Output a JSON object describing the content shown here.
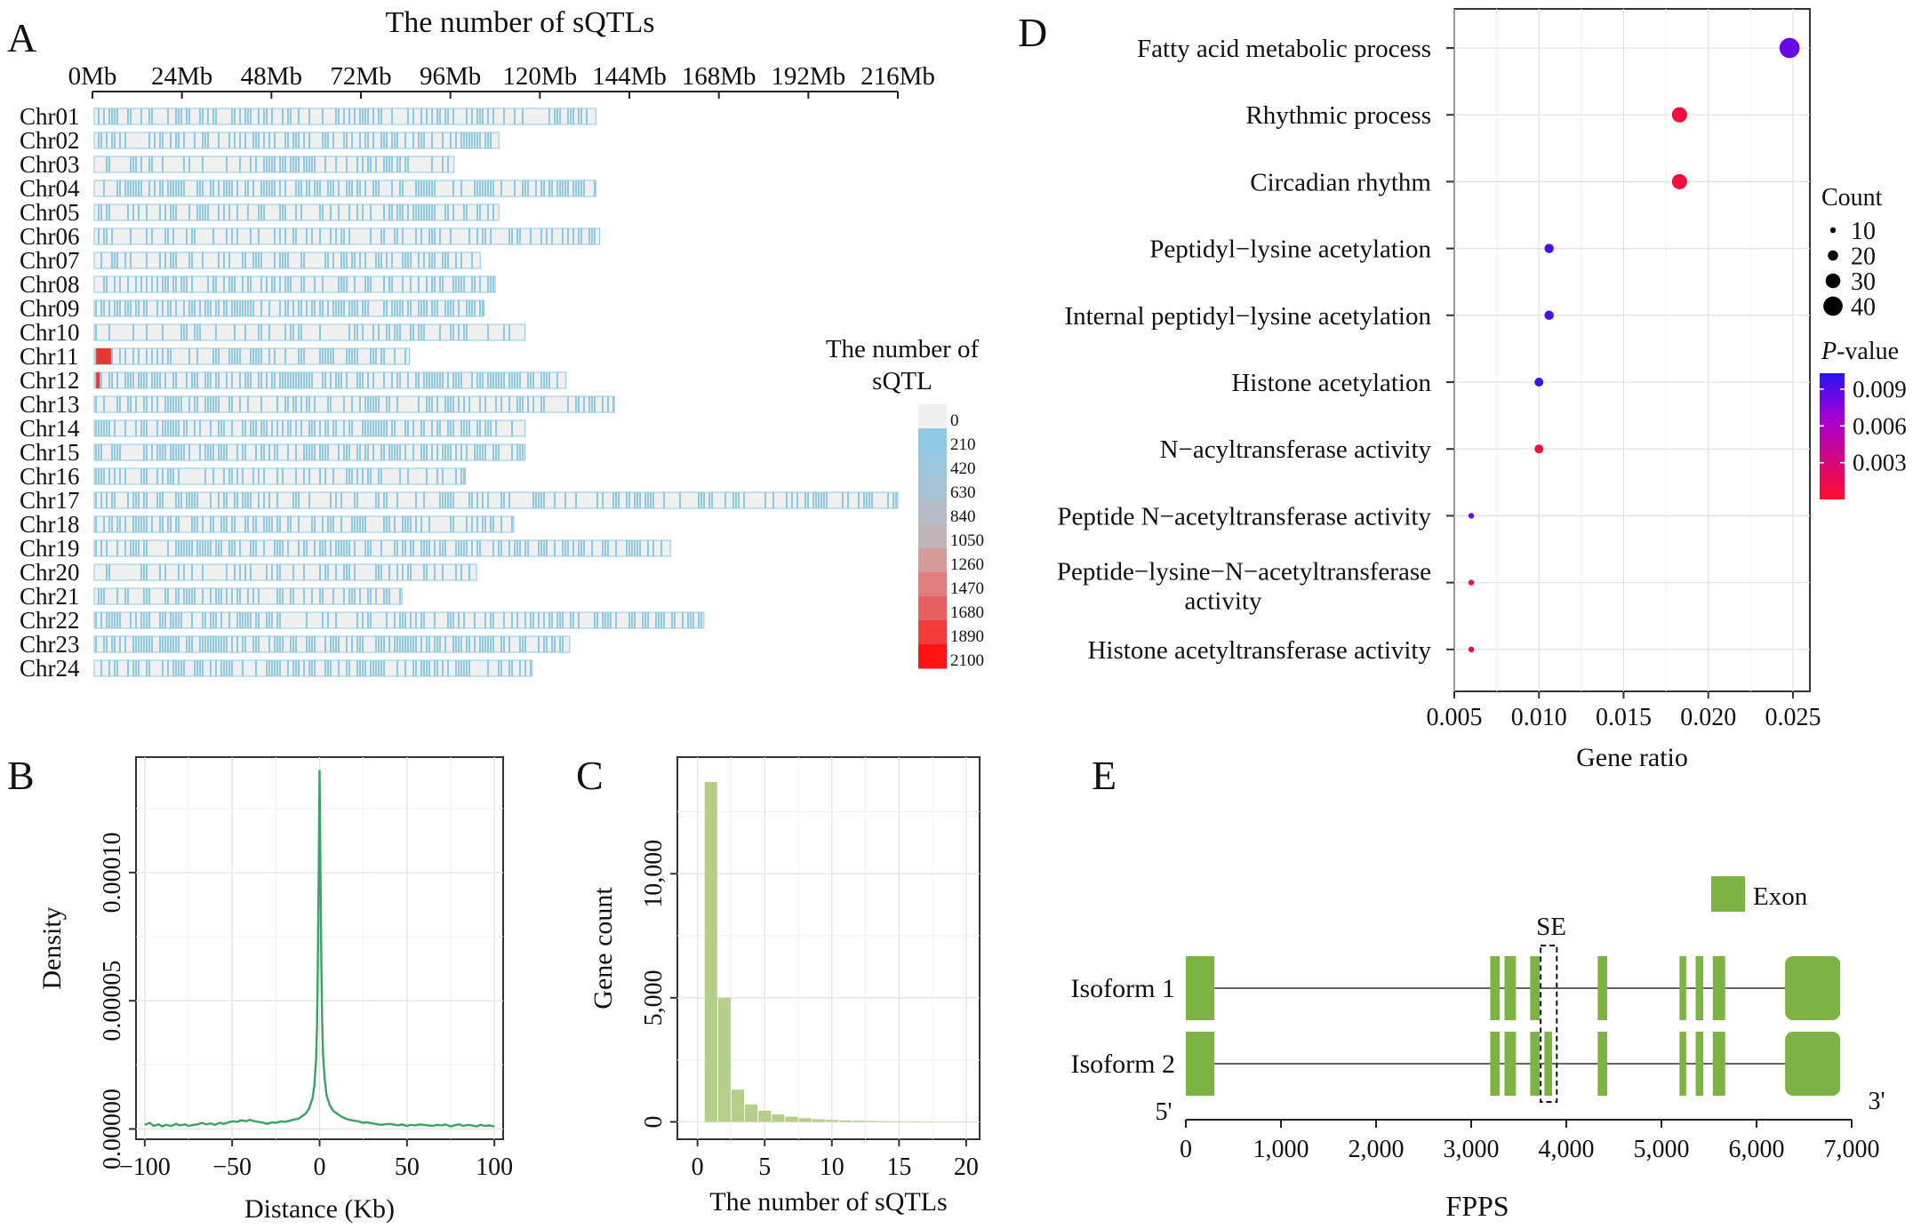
{
  "panels": {
    "A": {
      "letter": "A",
      "title": "The number of sQTLs",
      "axis_ticks": [
        "0Mb",
        "24Mb",
        "48Mb",
        "72Mb",
        "96Mb",
        "120Mb",
        "144Mb",
        "168Mb",
        "192Mb",
        "216Mb"
      ],
      "legend_title_line1": "The number of",
      "legend_title_line2": "sQTL",
      "legend_levels": [
        "0",
        "210",
        "420",
        "630",
        "840",
        "1050",
        "1260",
        "1470",
        "1680",
        "1890",
        "2100"
      ],
      "legend_colors": [
        "#f0f0f0",
        "#8ecae6",
        "#99c8de",
        "#a6c2d3",
        "#b4bcc6",
        "#c0b5b8",
        "#d59a9a",
        "#e07e7e",
        "#e85f5f",
        "#f23c3c",
        "#ff1212"
      ],
      "bar_fill": "#f0f0f0",
      "stripe_color": "#8ecae6",
      "hotspot_color": "#e53935"
    },
    "B": {
      "letter": "B"
    },
    "C": {
      "letter": "C"
    },
    "D": {
      "letter": "D",
      "size_legend_title": "Count",
      "size_legend_values": [
        "10",
        "20",
        "30",
        "40"
      ],
      "color_legend_title_italic": "P",
      "color_legend_title_rest": "-value",
      "color_legend_ticks": [
        "0.009",
        "0.006",
        "0.003"
      ]
    },
    "E": {
      "letter": "E",
      "gene_name": "FPPS",
      "legend_label": "Exon",
      "exon_color": "#7cb342",
      "se_label": "SE",
      "five_prime": "5'",
      "three_prime": "3'",
      "isoforms": [
        "Isoform 1",
        "Isoform 2"
      ],
      "axis_ticks": [
        "0",
        "1,000",
        "2,000",
        "3,000",
        "4,000",
        "5,000",
        "6,000",
        "7,000"
      ],
      "axis_range": [
        0,
        7000
      ],
      "exons": {
        "isoform1": [
          [
            0,
            300
          ],
          [
            3200,
            3300
          ],
          [
            3350,
            3470
          ],
          [
            3620,
            3720
          ],
          [
            4330,
            4430
          ],
          [
            5190,
            5260
          ],
          [
            5360,
            5440
          ],
          [
            5540,
            5670
          ],
          [
            6300,
            6880
          ]
        ],
        "isoform2": [
          [
            0,
            300
          ],
          [
            3200,
            3300
          ],
          [
            3350,
            3470
          ],
          [
            3620,
            3720
          ],
          [
            3770,
            3850
          ],
          [
            4330,
            4430
          ],
          [
            5190,
            5260
          ],
          [
            5360,
            5440
          ],
          [
            5540,
            5670
          ],
          [
            6300,
            6880
          ]
        ]
      },
      "se_range": [
        3730,
        3900
      ]
    }
  },
  "chart_data": [
    {
      "panel": "A",
      "type": "heatmap",
      "title": "The number of sQTLs",
      "xlabel": "",
      "x_unit": "Mb",
      "xlim": [
        0,
        216
      ],
      "categories": [
        "Chr01",
        "Chr02",
        "Chr03",
        "Chr04",
        "Chr05",
        "Chr06",
        "Chr07",
        "Chr08",
        "Chr09",
        "Chr10",
        "Chr11",
        "Chr12",
        "Chr13",
        "Chr14",
        "Chr15",
        "Chr16",
        "Chr17",
        "Chr18",
        "Chr19",
        "Chr20",
        "Chr21",
        "Chr22",
        "Chr23",
        "Chr24"
      ],
      "lengths_mb": [
        135,
        109,
        97,
        135,
        109,
        136,
        104,
        108,
        105,
        116,
        85,
        127,
        140,
        116,
        116,
        100,
        216,
        113,
        155,
        103,
        83,
        164,
        128,
        118
      ],
      "densities": [
        0.45,
        0.5,
        0.4,
        0.6,
        0.45,
        0.3,
        0.45,
        0.5,
        0.55,
        0.3,
        0.4,
        0.65,
        0.5,
        0.6,
        0.6,
        0.3,
        0.45,
        0.5,
        0.55,
        0.35,
        0.45,
        0.55,
        0.6,
        0.55
      ],
      "hotspots": [
        {
          "chr": "Chr11",
          "start_mb": 1,
          "end_mb": 5
        },
        {
          "chr": "Chr12",
          "start_mb": 1,
          "end_mb": 2
        }
      ]
    },
    {
      "panel": "B",
      "type": "line",
      "title": "",
      "xlabel": "Distance (Kb)",
      "ylabel": "Density",
      "xlim": [
        -105,
        105
      ],
      "ylim": [
        -4e-06,
        0.000145
      ],
      "x_ticks": [
        "−100",
        "−50",
        "0",
        "50",
        "100"
      ],
      "x_tick_values": [
        -100,
        -50,
        0,
        50,
        100
      ],
      "y_ticks": [
        "0.00000",
        "0.00005",
        "0.00010"
      ],
      "y_tick_values": [
        0,
        5e-05,
        0.0001
      ],
      "line_color": "#3aa466",
      "series": [
        {
          "name": "density",
          "x": [
            -100,
            -97,
            -95,
            -92,
            -90,
            -88,
            -85,
            -82,
            -80,
            -77,
            -75,
            -72,
            -70,
            -67,
            -65,
            -62,
            -60,
            -57,
            -55,
            -52,
            -50,
            -47,
            -45,
            -42,
            -40,
            -37,
            -35,
            -32,
            -30,
            -27,
            -25,
            -22,
            -20,
            -17,
            -15,
            -12,
            -10,
            -8,
            -6,
            -4,
            -3,
            -2,
            -1.5,
            -1,
            -0.5,
            0,
            0.5,
            1,
            1.5,
            2,
            3,
            4,
            6,
            8,
            10,
            12,
            15,
            17,
            20,
            22,
            25,
            27,
            30,
            32,
            35,
            37,
            40,
            42,
            45,
            47,
            50,
            52,
            55,
            57,
            60,
            62,
            65,
            67,
            70,
            72,
            75,
            77,
            80,
            82,
            85,
            87,
            90,
            92,
            95,
            97,
            100
          ],
          "y": [
            1.6e-06,
            2.4e-06,
            1.2e-06,
            1.8e-06,
            1e-06,
            1.6e-06,
            1.2e-06,
            2e-06,
            1.4e-06,
            1.8e-06,
            1.2e-06,
            1.6e-06,
            1.8e-06,
            2.4e-06,
            1.8e-06,
            2.2e-06,
            1.6e-06,
            2.4e-06,
            2e-06,
            2.6e-06,
            3e-06,
            2.8e-06,
            3.4e-06,
            3e-06,
            3.6e-06,
            3e-06,
            2.8e-06,
            2.4e-06,
            2e-06,
            2.6e-06,
            2.4e-06,
            3e-06,
            2.8e-06,
            3.2e-06,
            3.6e-06,
            4e-06,
            5e-06,
            6e-06,
            8e-06,
            1.2e-05,
            1.7e-05,
            2.7e-05,
            4e-05,
            6.2e-05,
            0.0001,
            0.00014,
            0.0001,
            6.5e-05,
            4.2e-05,
            2.9e-05,
            1.9e-05,
            1.3e-05,
            9e-06,
            7e-06,
            6e-06,
            5e-06,
            4e-06,
            3.6e-06,
            3.2e-06,
            3e-06,
            2.4e-06,
            2.6e-06,
            2.2e-06,
            2e-06,
            1.6e-06,
            1.8e-06,
            2e-06,
            1.8e-06,
            1.4e-06,
            1.8e-06,
            1.2e-06,
            1.6e-06,
            1.4e-06,
            1.8e-06,
            1.6e-06,
            1.4e-06,
            1.2e-06,
            1.6e-06,
            1.4e-06,
            1.8e-06,
            1e-06,
            1.4e-06,
            1.8e-06,
            1.2e-06,
            1.6e-06,
            1.4e-06,
            1e-06,
            1.6e-06,
            1.2e-06,
            1.4e-06,
            1e-06
          ]
        }
      ]
    },
    {
      "panel": "C",
      "type": "bar",
      "title": "",
      "xlabel": "The number of sQTLs",
      "ylabel": "Gene count",
      "xlim": [
        -1.5,
        21
      ],
      "ylim": [
        -700,
        14700
      ],
      "x_ticks": [
        "0",
        "5",
        "10",
        "15",
        "20"
      ],
      "x_tick_values": [
        0,
        5,
        10,
        15,
        20
      ],
      "y_ticks": [
        "0",
        "5,000",
        "10,000"
      ],
      "y_tick_values": [
        0,
        5000,
        10000
      ],
      "bar_color": "#b5cf8a",
      "categories": [
        "1",
        "2",
        "3",
        "4",
        "5",
        "6",
        "7",
        "8",
        "9",
        "10",
        "11",
        "12",
        "13",
        "14",
        "15",
        "16",
        "17",
        "18",
        "19",
        "20"
      ],
      "values": [
        13700,
        5000,
        1300,
        700,
        450,
        300,
        210,
        150,
        110,
        80,
        60,
        45,
        35,
        28,
        22,
        18,
        14,
        10,
        8,
        6
      ]
    },
    {
      "panel": "D",
      "type": "scatter",
      "title": "",
      "xlabel": "Gene ratio",
      "ylabel": "",
      "xlim": [
        0.005,
        0.026
      ],
      "x_ticks": [
        "0.005",
        "0.010",
        "0.015",
        "0.020",
        "0.025"
      ],
      "x_tick_values": [
        0.005,
        0.01,
        0.015,
        0.02,
        0.025
      ],
      "categories": [
        [
          "Fatty acid metabolic process"
        ],
        [
          "Rhythmic process"
        ],
        [
          "Circadian rhythm"
        ],
        [
          "Peptidyl−lysine acetylation"
        ],
        [
          "Internal peptidyl−lysine acetylation"
        ],
        [
          "Histone acetylation"
        ],
        [
          "N−acyltransferase activity"
        ],
        [
          "Peptide N−acetyltransferase activity"
        ],
        [
          "Peptide−lysine−N−acetyltransferase",
          "activity"
        ],
        [
          "Histone acetyltransferase activity"
        ]
      ],
      "gene_ratio": [
        0.0248,
        0.0183,
        0.0183,
        0.0106,
        0.0106,
        0.01,
        0.01,
        0.006,
        0.006,
        0.006
      ],
      "count": [
        42,
        31,
        31,
        18,
        18,
        17,
        17,
        10,
        10,
        10
      ],
      "p_value": [
        0.0085,
        0.0005,
        0.0005,
        0.0095,
        0.0095,
        0.0097,
        0.0005,
        0.0085,
        0.0007,
        0.0009
      ],
      "color_range": [
        0.0,
        0.0103
      ],
      "color_low": "#ff0d2e",
      "color_mid": "#a400d6",
      "color_high": "#2a14f5"
    }
  ]
}
